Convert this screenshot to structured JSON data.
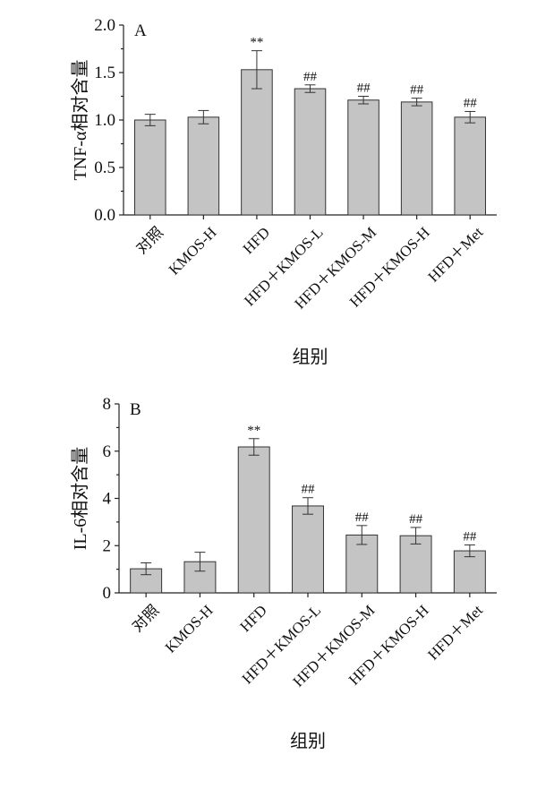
{
  "chart_data": [
    {
      "type": "bar",
      "panel_label": "A",
      "title": "",
      "xlabel": "组别",
      "ylabel": "TNF-α相对含量",
      "ylim": [
        0,
        2.0
      ],
      "yticks": [
        "0.0",
        "0.5",
        "1.0",
        "1.5",
        "2.0"
      ],
      "ytick_values": [
        0,
        0.5,
        1.0,
        1.5,
        2.0
      ],
      "categories": [
        "对照",
        "KMOS-H",
        "HFD",
        "HFD＋KMOS-L",
        "HFD＋KMOS-M",
        "HFD＋KMOS-H",
        "HFD＋Met"
      ],
      "values": [
        1.0,
        1.03,
        1.53,
        1.33,
        1.21,
        1.19,
        1.03
      ],
      "errors": [
        0.06,
        0.07,
        0.2,
        0.04,
        0.04,
        0.04,
        0.06
      ],
      "annotations": [
        "",
        "",
        "**",
        "##",
        "##",
        "##",
        "##"
      ]
    },
    {
      "type": "bar",
      "panel_label": "B",
      "title": "",
      "xlabel": "组别",
      "ylabel": "IL-6相对含量",
      "ylim": [
        0,
        8
      ],
      "yticks": [
        "0",
        "2",
        "4",
        "6",
        "8"
      ],
      "ytick_values": [
        0,
        2,
        4,
        6,
        8
      ],
      "categories": [
        "对照",
        "KMOS-H",
        "HFD",
        "HFD＋KMOS-L",
        "HFD＋KMOS-M",
        "HFD＋KMOS-H",
        "HFD＋Met"
      ],
      "values": [
        1.02,
        1.32,
        6.18,
        3.68,
        2.45,
        2.42,
        1.78
      ],
      "errors": [
        0.25,
        0.4,
        0.35,
        0.35,
        0.4,
        0.35,
        0.25
      ],
      "annotations": [
        "",
        "",
        "**",
        "##",
        "##",
        "##",
        "##"
      ]
    }
  ]
}
